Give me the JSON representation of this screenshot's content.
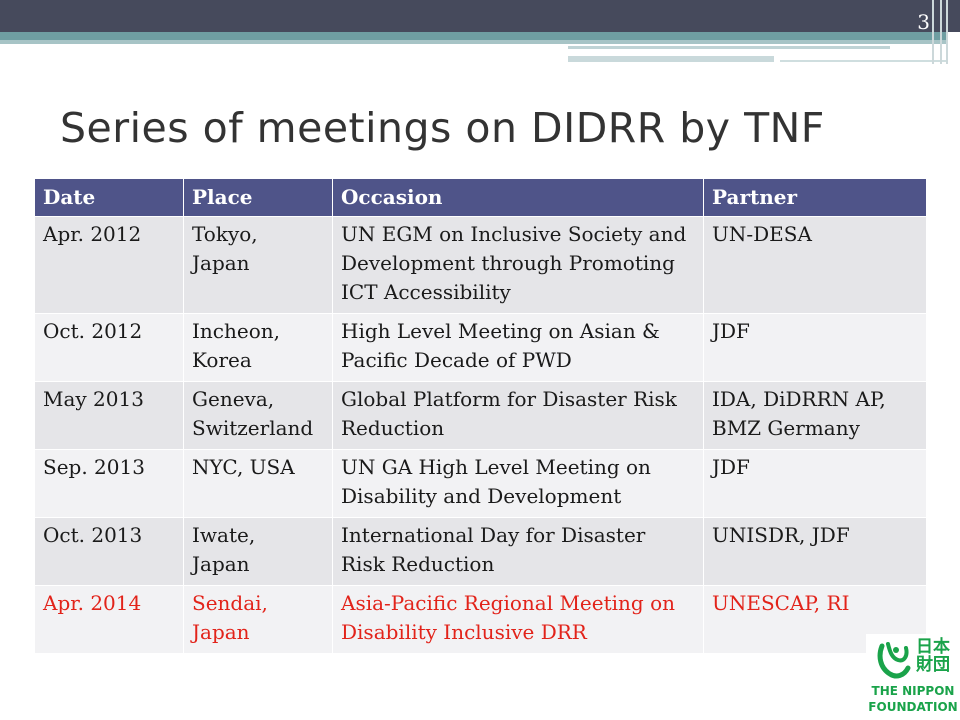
{
  "slide": {
    "number": "3",
    "title": "Series of meetings on DIDRR by TNF"
  },
  "table": {
    "headers": [
      "Date",
      "Place",
      "Occasion",
      "Partner"
    ],
    "rows": [
      {
        "date": "Apr. 2012",
        "place_line1": "Tokyo,",
        "place_line2": "Japan",
        "occasion": "UN EGM on Inclusive Society and Development through Promoting ICT Accessibility",
        "partner": "UN-DESA",
        "highlight": false
      },
      {
        "date": "Oct. 2012",
        "place_line1": "Incheon,",
        "place_line2": "Korea",
        "occasion": "High Level Meeting on Asian & Pacific Decade of PWD",
        "partner": "JDF",
        "highlight": false
      },
      {
        "date": "May 2013",
        "place_line1": "Geneva,",
        "place_line2": "Switzerland",
        "occasion": "Global Platform for Disaster Risk Reduction",
        "partner": "IDA, DiDRRN AP, BMZ Germany",
        "highlight": false
      },
      {
        "date": "Sep. 2013",
        "place_line1": "NYC, USA",
        "place_line2": "",
        "occasion": "UN GA High Level Meeting on Disability and Development",
        "partner": "JDF",
        "highlight": false
      },
      {
        "date": "Oct. 2013",
        "place_line1": "Iwate,",
        "place_line2": "Japan",
        "occasion": "International Day for Disaster Risk Reduction",
        "partner": "UNISDR, JDF",
        "highlight": false
      },
      {
        "date": "Apr. 2014",
        "place_line1": "Sendai,",
        "place_line2": "Japan",
        "occasion": "Asia-Pacific Regional Meeting on Disability Inclusive DRR",
        "partner": "UNESCAP, RI",
        "highlight": true
      }
    ]
  },
  "logo": {
    "kanji": "日本財団",
    "line1": "THE NIPPON",
    "line2": "FOUNDATION"
  },
  "colors": {
    "header_bg": "#4f5489",
    "highlight_text": "#e2231a",
    "logo_green": "#1aa34a",
    "top_bar": "#464a5c"
  }
}
